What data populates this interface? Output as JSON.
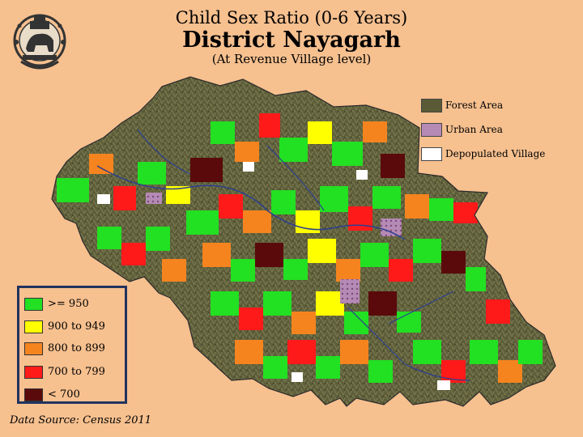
{
  "header": {
    "title_line1": "Child Sex Ratio (0-6 Years)",
    "title_line2": "District Nayagarh",
    "title_line3": "(At Revenue Village level)"
  },
  "overlay_legend": [
    {
      "label": "Forest Area",
      "color": "#5a5a36"
    },
    {
      "label": "Urban Area",
      "color": "#b58ab5"
    },
    {
      "label": "Depopulated Village",
      "color": "#ffffff"
    }
  ],
  "class_legend": [
    {
      "label": ">= 950",
      "color": "#22e022"
    },
    {
      "label": "900 to 949",
      "color": "#ffff00"
    },
    {
      "label": "800 to 899",
      "color": "#f5841f"
    },
    {
      "label": "700 to 799",
      "color": "#ff1a1a"
    },
    {
      "label": "< 700",
      "color": "#5a0a0a"
    }
  ],
  "source": "Data Source: Census 2011",
  "colors": {
    "background": "#f6c08f",
    "river": "#2b3f8f",
    "legend_border": "#22335e"
  }
}
